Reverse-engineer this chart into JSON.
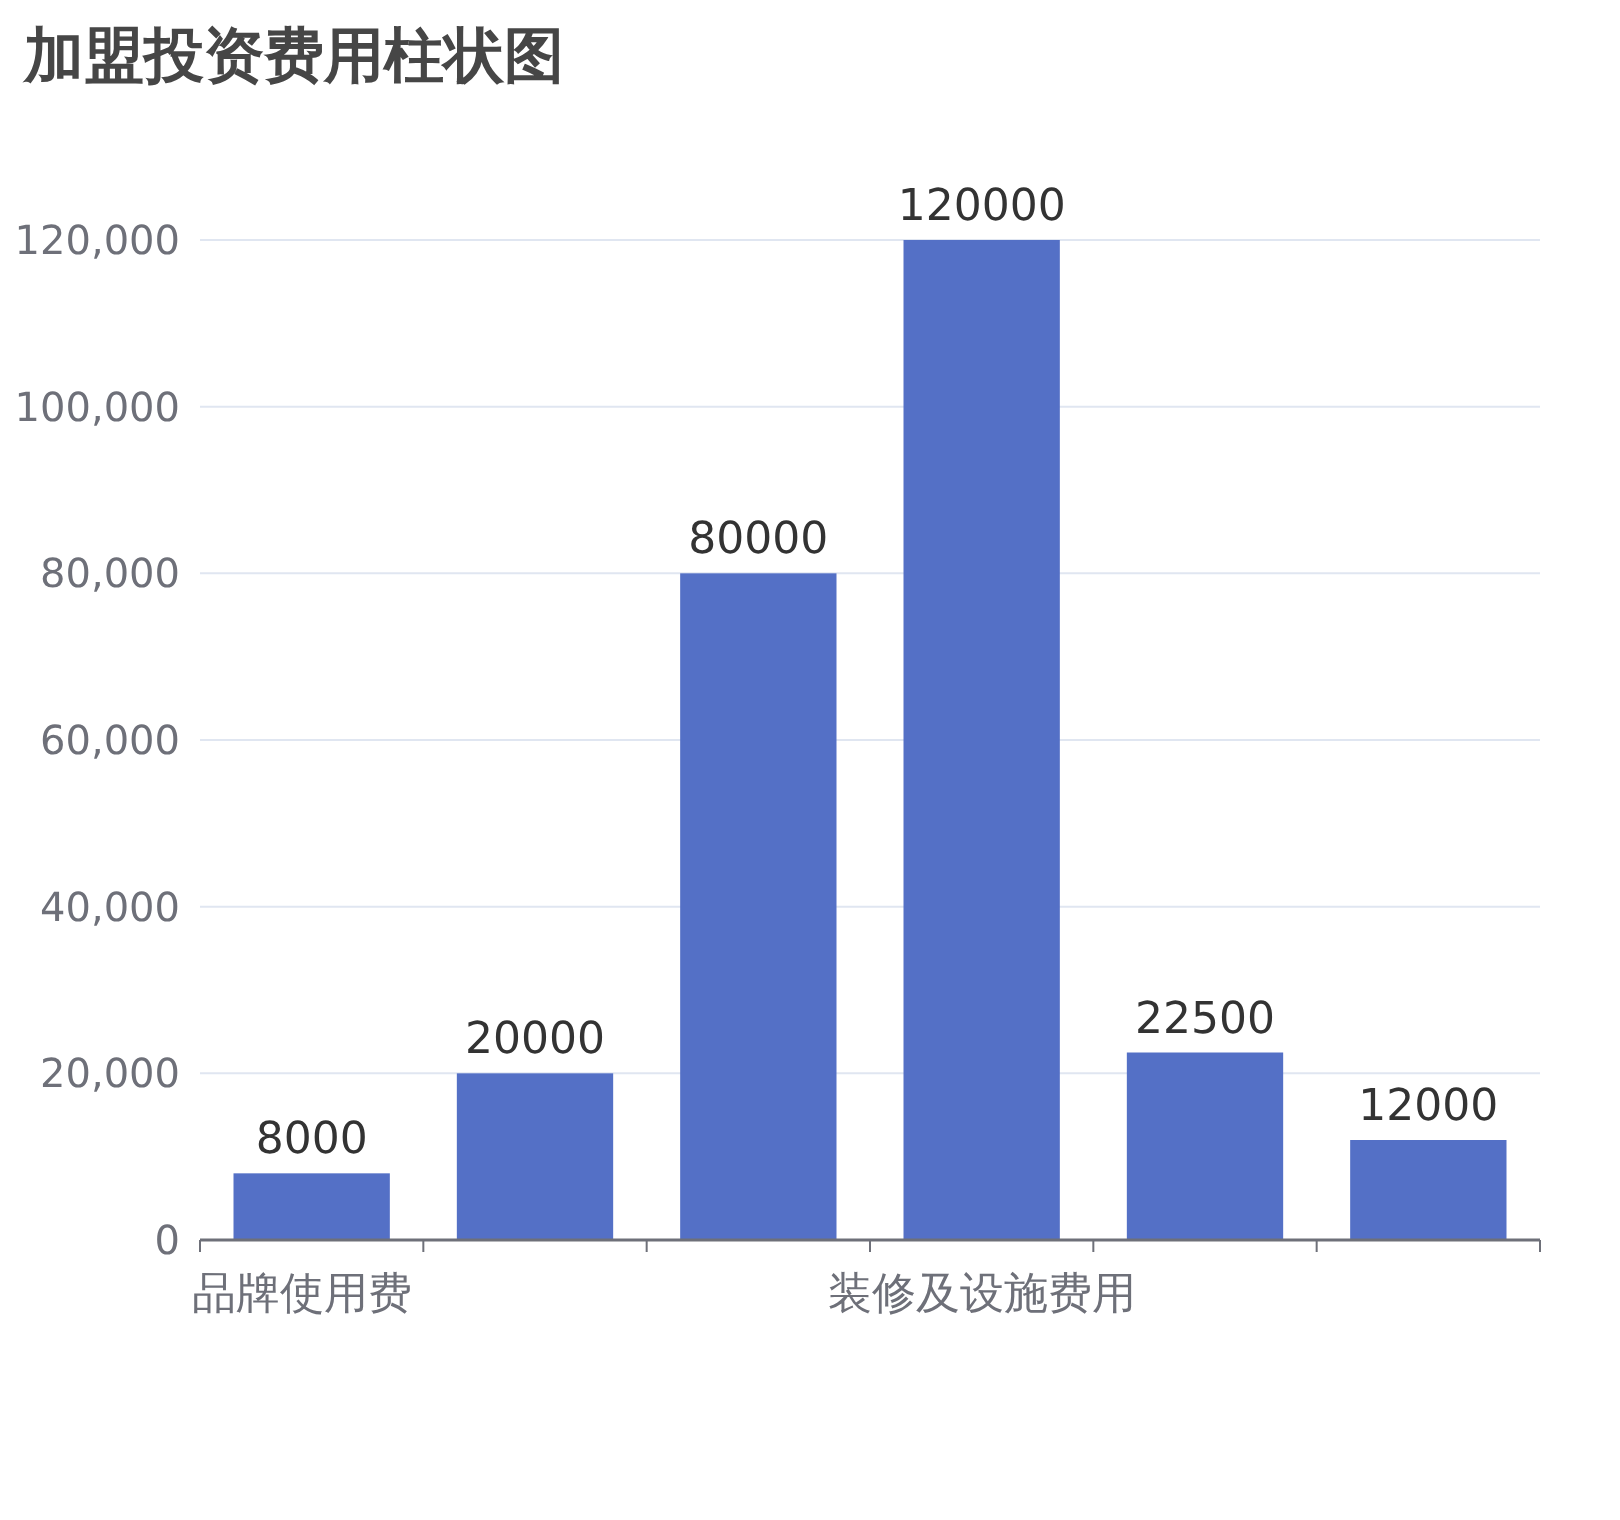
{
  "chart_data": {
    "type": "bar",
    "title": "加盟投资费用柱状图",
    "categories": [
      "品牌使用费",
      null,
      null,
      "装修及设施费用",
      null,
      null
    ],
    "values": [
      8000,
      20000,
      80000,
      120000,
      22500,
      12000
    ],
    "color": "#5470c6",
    "ylim": [
      0,
      120000
    ],
    "yticks": [
      0,
      {
        "value": 20000,
        "label": "20,000"
      },
      {
        "value": 40000,
        "label": "40,000"
      },
      {
        "value": 60000,
        "label": "60,000"
      },
      {
        "value": 80000,
        "label": "80,000"
      },
      {
        "value": 100000,
        "label": "100,000"
      },
      {
        "value": 120000,
        "label": "120,000"
      }
    ],
    "grid": "y",
    "data_labels": true
  }
}
